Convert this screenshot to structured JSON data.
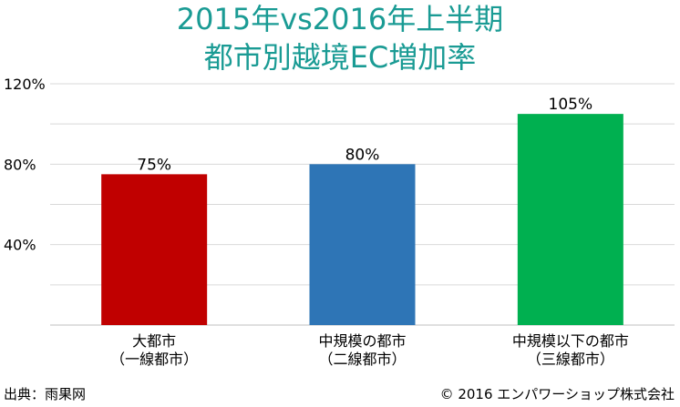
{
  "title_lines": [
    "2015年vs2016年上半期",
    "都市別越境EC増加率"
  ],
  "source_text": "出典：雨果网",
  "copyright_text": "© 2016 エンパワーショップ株式会社",
  "chart_data": {
    "type": "bar",
    "title": "2015年vs2016年上半期 都市別越境EC増加率",
    "categories": [
      [
        "大都市",
        "（一線都市）"
      ],
      [
        "中規模の都市",
        "（二線都市）"
      ],
      [
        "中規模以下の都市",
        "（三線都市）"
      ]
    ],
    "values": [
      75,
      80,
      105
    ],
    "value_labels": [
      "75%",
      "80%",
      "105%"
    ],
    "colors": [
      "#c00000",
      "#2e75b6",
      "#00b050"
    ],
    "ylim": [
      0,
      120
    ],
    "yticks": [
      40,
      80,
      120
    ],
    "ytick_labels": [
      "40%",
      "80%",
      "120%"
    ],
    "grid": true,
    "xlabel": "",
    "ylabel": ""
  }
}
